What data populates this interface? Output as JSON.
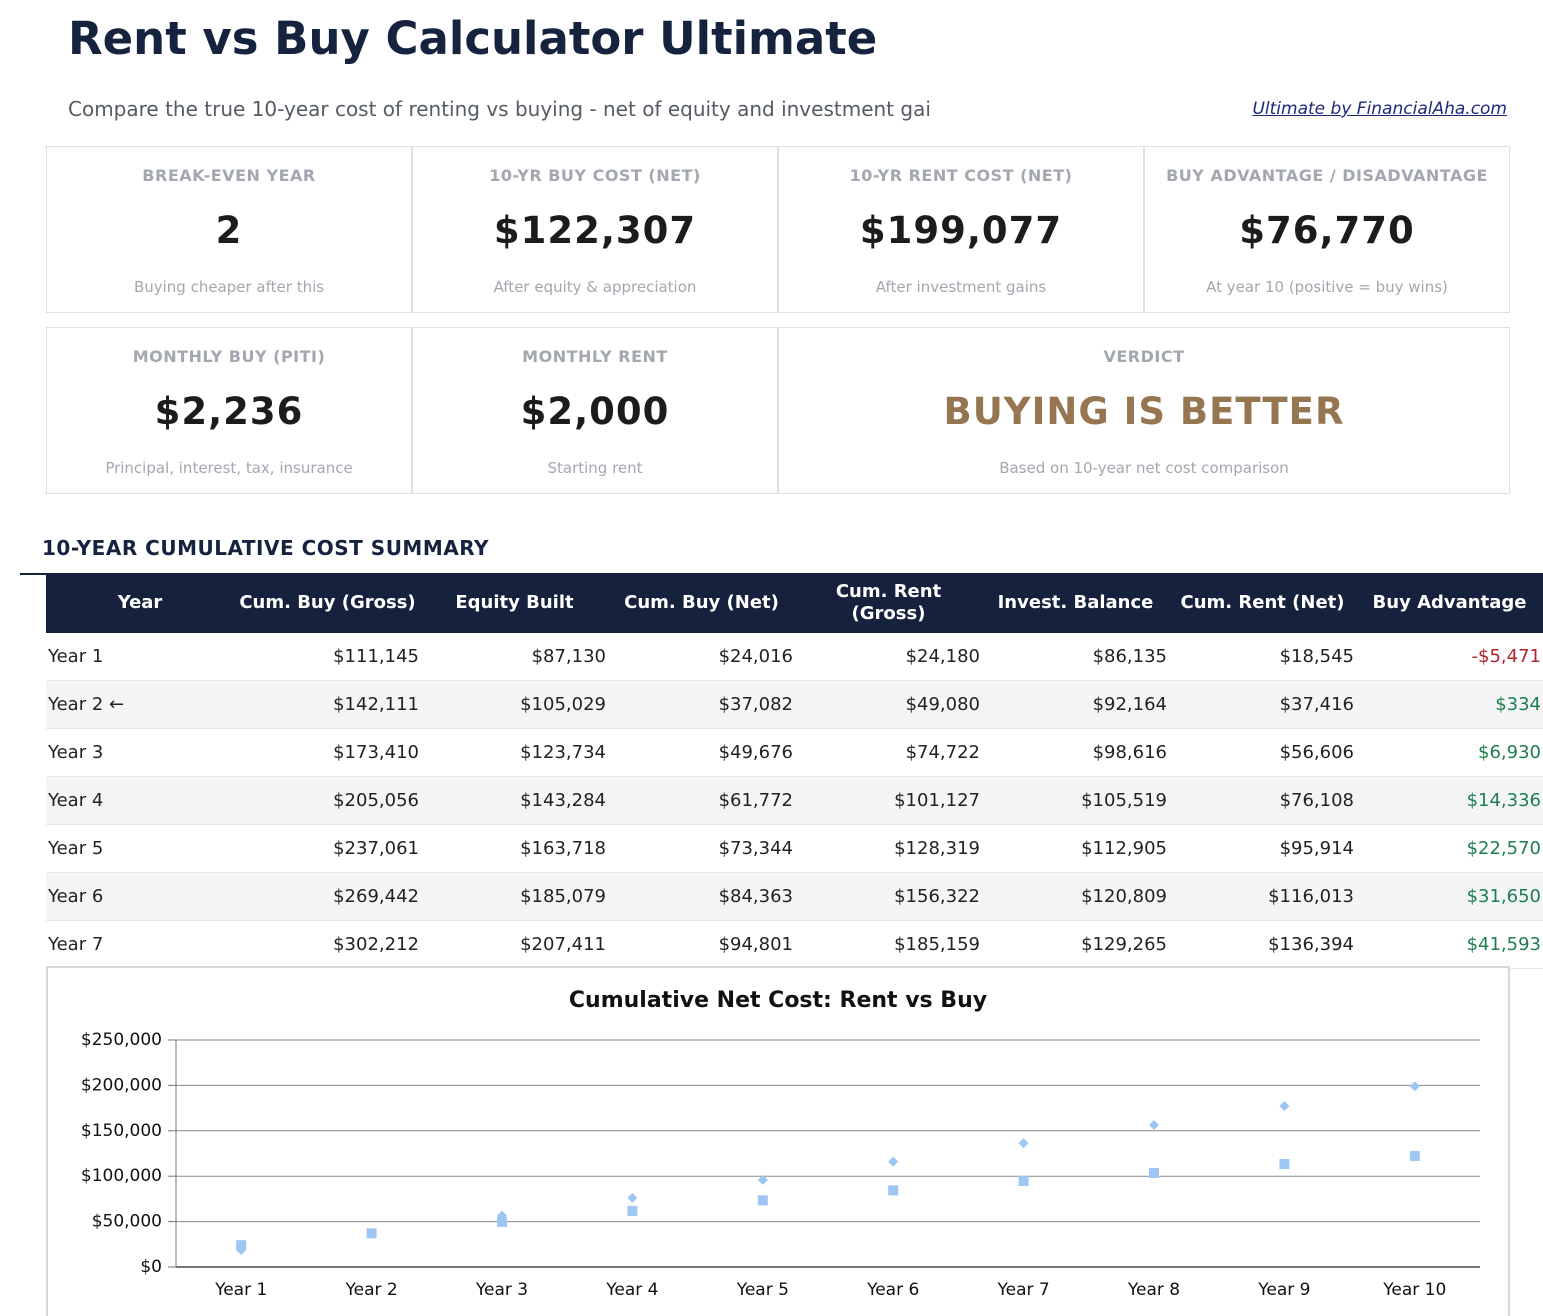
{
  "header": {
    "title": "Rent vs Buy Calculator Ultimate",
    "subtitle": "Compare the true 10-year cost of renting vs buying - net of equity and investment gai",
    "link": "Ultimate by FinancialAha.com"
  },
  "cards": [
    {
      "label": "BREAK-EVEN YEAR",
      "value": "2",
      "note": "Buying cheaper after this"
    },
    {
      "label": "10-YR BUY COST (NET)",
      "value": "$122,307",
      "note": "After equity & appreciation"
    },
    {
      "label": "10-YR RENT COST (NET)",
      "value": "$199,077",
      "note": "After investment gains"
    },
    {
      "label": "BUY ADVANTAGE / DISADVANTAGE",
      "value": "$76,770",
      "note": "At year 10 (positive = buy wins)"
    },
    {
      "label": "MONTHLY BUY (PITI)",
      "value": "$2,236",
      "note": "Principal, interest, tax, insurance"
    },
    {
      "label": "MONTHLY RENT",
      "value": "$2,000",
      "note": "Starting rent"
    },
    {
      "label": "VERDICT",
      "value": "BUYING IS BETTER",
      "note": "Based on 10-year net cost comparison",
      "value_color": "#957650"
    }
  ],
  "table": {
    "title": "10-YEAR CUMULATIVE COST SUMMARY",
    "columns": [
      "Year",
      "Cum. Buy (Gross)",
      "Equity Built",
      "Cum. Buy (Net)",
      "Cum. Rent (Gross)",
      "Invest. Balance",
      "Cum. Rent (Net)",
      "Buy Advantage"
    ],
    "rows": [
      [
        "Year 1",
        "$111,145",
        "$87,130",
        "$24,016",
        "$24,180",
        "$86,135",
        "$18,545",
        "-$5,471"
      ],
      [
        "Year 2 ←",
        "$142,111",
        "$105,029",
        "$37,082",
        "$49,080",
        "$92,164",
        "$37,416",
        "$334"
      ],
      [
        "Year 3",
        "$173,410",
        "$123,734",
        "$49,676",
        "$74,722",
        "$98,616",
        "$56,606",
        "$6,930"
      ],
      [
        "Year 4",
        "$205,056",
        "$143,284",
        "$61,772",
        "$101,127",
        "$105,519",
        "$76,108",
        "$14,336"
      ],
      [
        "Year 5",
        "$237,061",
        "$163,718",
        "$73,344",
        "$128,319",
        "$112,905",
        "$95,914",
        "$22,570"
      ],
      [
        "Year 6",
        "$269,442",
        "$185,079",
        "$84,363",
        "$156,322",
        "$120,809",
        "$116,013",
        "$31,650"
      ],
      [
        "Year 7",
        "$302,212",
        "$207,411",
        "$94,801",
        "$185,159",
        "$129,265",
        "$136,394",
        "$41,593"
      ]
    ]
  },
  "chart_data": {
    "type": "scatter",
    "title": "Cumulative Net Cost: Rent vs Buy",
    "categories": [
      "Year 1",
      "Year 2",
      "Year 3",
      "Year 4",
      "Year 5",
      "Year 6",
      "Year 7",
      "Year 8",
      "Year 9",
      "Year 10"
    ],
    "series": [
      {
        "color": "#9dc6f2",
        "marker": "square",
        "values": [
          24016,
          37082,
          49676,
          61772,
          73344,
          84363,
          94801,
          103500,
          113400,
          122307
        ]
      },
      {
        "color": "#9dc6f2",
        "marker": "diamond",
        "values": [
          18545,
          37416,
          56606,
          76108,
          95914,
          116013,
          136394,
          156400,
          177300,
          199077
        ]
      }
    ],
    "ylim": [
      0,
      250000
    ],
    "yticks": [
      {
        "value": 0,
        "label": "$0"
      },
      {
        "value": 50000,
        "label": "$50,000"
      },
      {
        "value": 100000,
        "label": "$100,000"
      },
      {
        "value": 150000,
        "label": "$150,000"
      },
      {
        "value": 200000,
        "label": "$200,000"
      },
      {
        "value": 250000,
        "label": "$250,000"
      }
    ],
    "grid": true
  }
}
